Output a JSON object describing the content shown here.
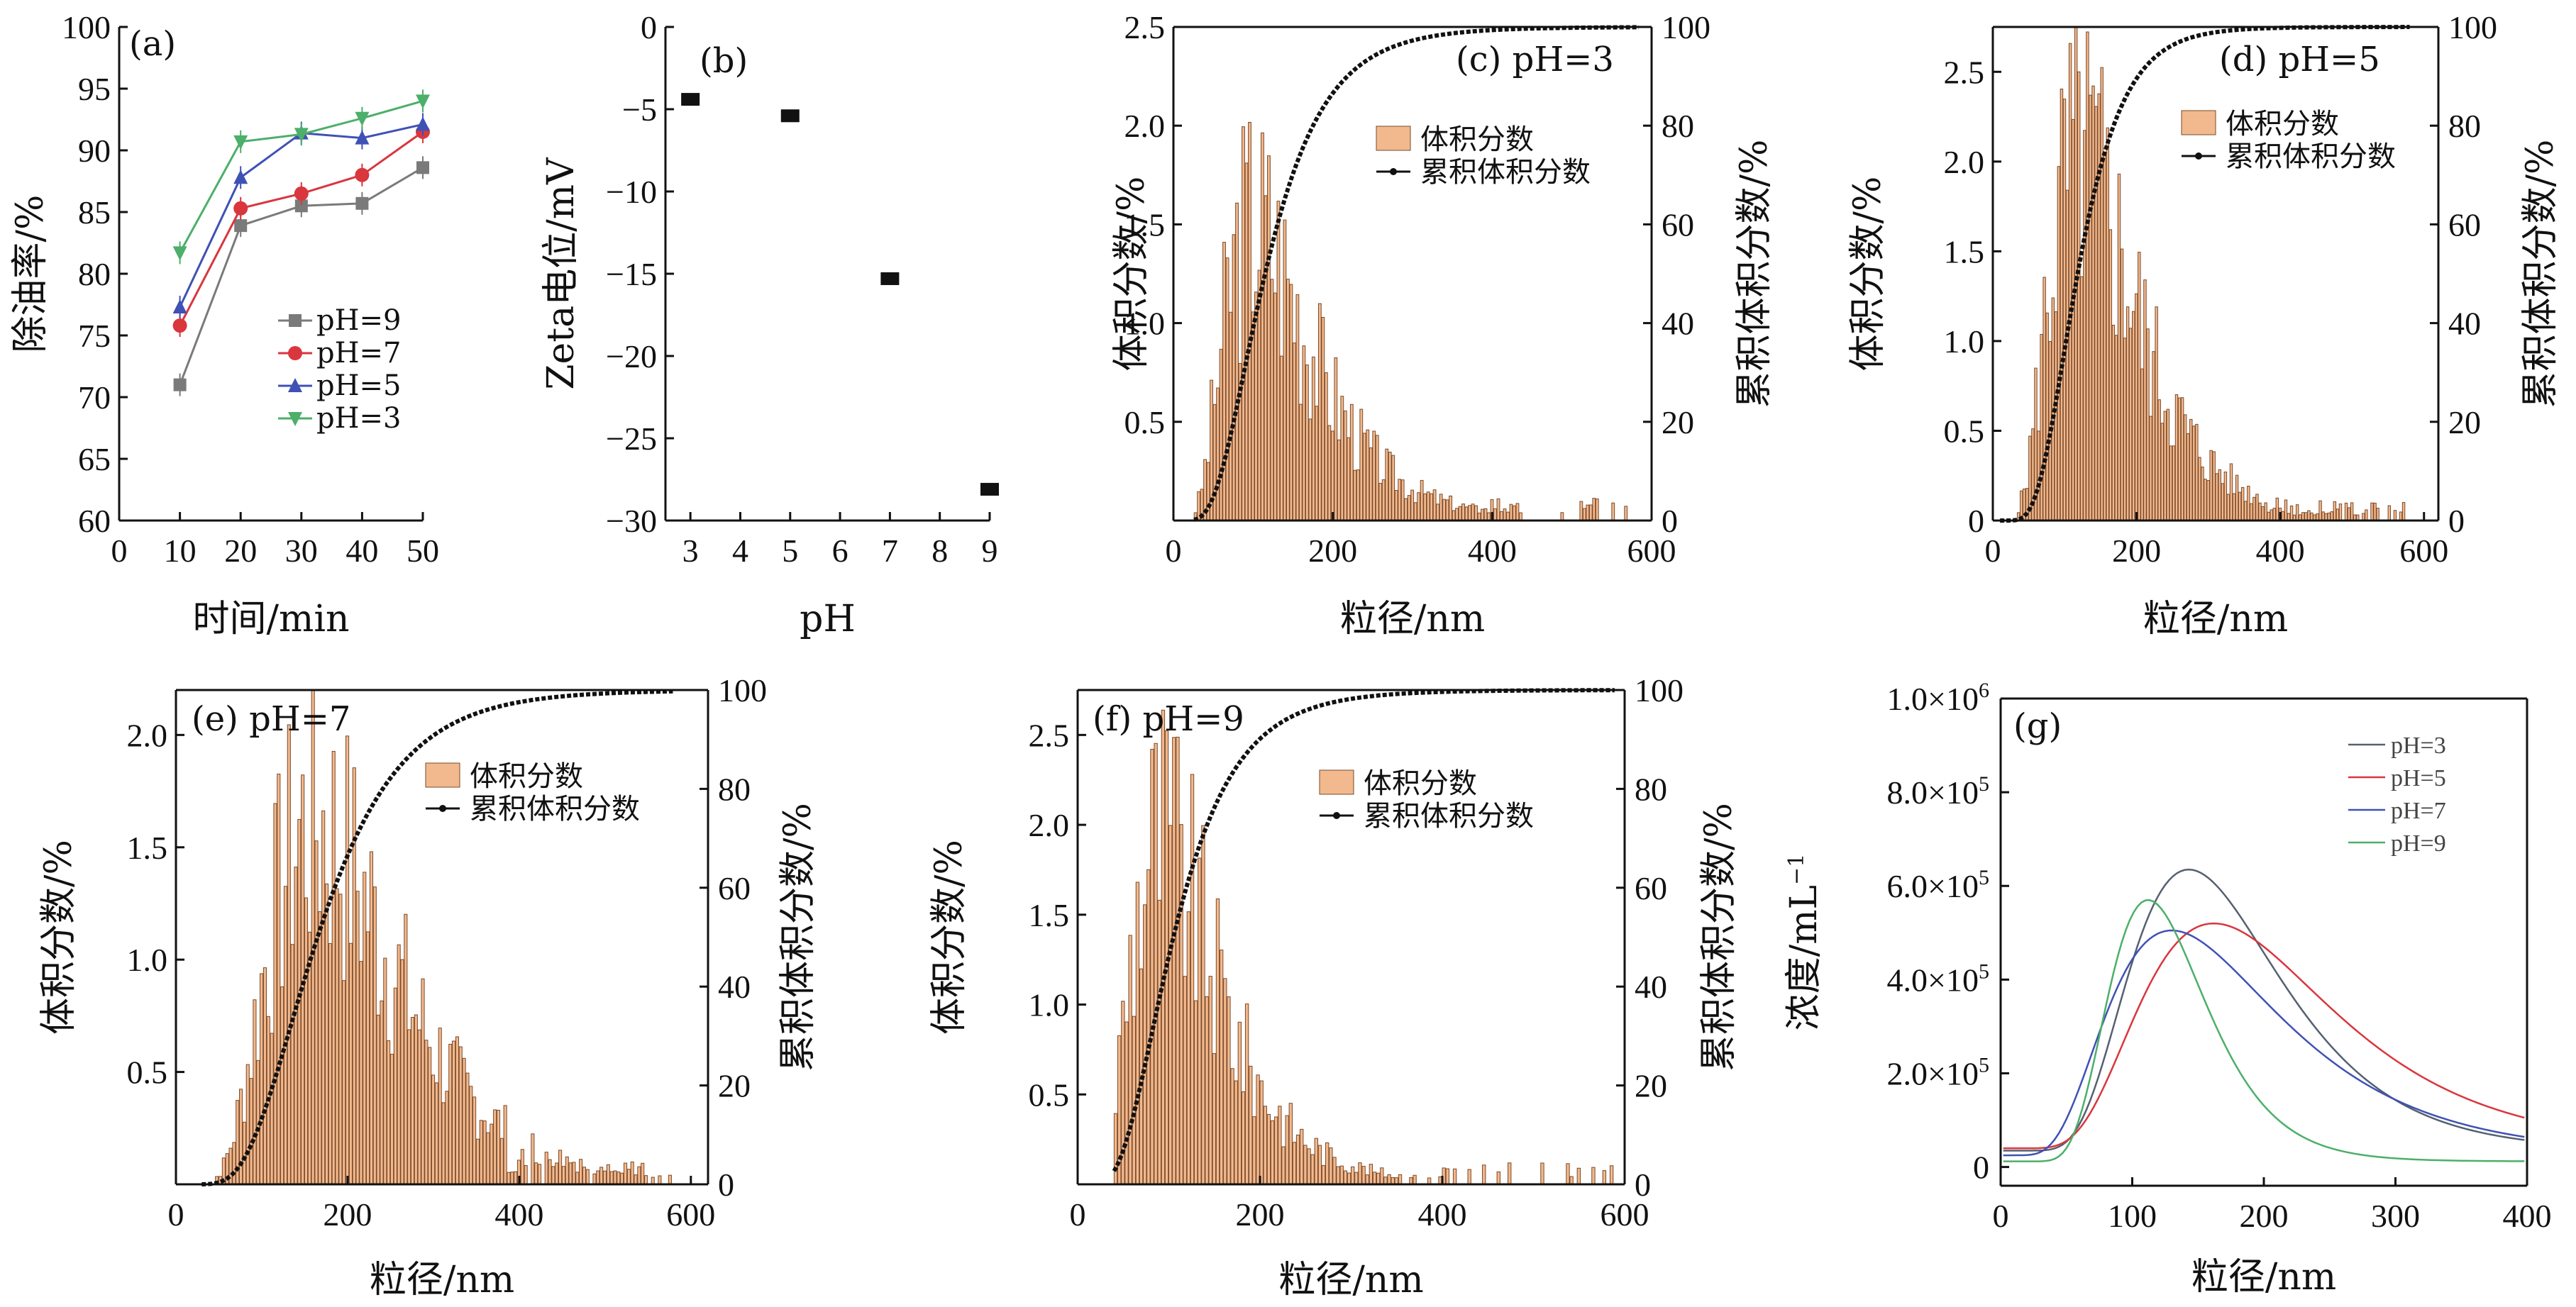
{
  "figure": {
    "colors": {
      "axis": "#111111",
      "bar_fill": "#f2b98e",
      "bar_stroke": "#7a4a2a",
      "cum": "#111111"
    }
  },
  "chart_data": [
    {
      "id": "a",
      "type": "line",
      "panel_label": "(a)",
      "xlabel": "时间/min",
      "ylabel": "除油率/%",
      "xlim": [
        0,
        50
      ],
      "ylim": [
        60,
        100
      ],
      "xticks": [
        "0",
        "10",
        "20",
        "30",
        "40",
        "50"
      ],
      "yticks": [
        "60",
        "65",
        "70",
        "75",
        "80",
        "85",
        "90",
        "95",
        "100"
      ],
      "x": [
        10,
        20,
        30,
        40,
        50
      ],
      "series": [
        {
          "name": "pH=9",
          "values": [
            71.0,
            83.9,
            85.5,
            85.7,
            88.6
          ],
          "color": "#7a7a7a",
          "marker": "square"
        },
        {
          "name": "pH=7",
          "values": [
            75.8,
            85.3,
            86.5,
            88.0,
            91.5
          ],
          "color": "#d9363e",
          "marker": "circle"
        },
        {
          "name": "pH=5",
          "values": [
            77.3,
            87.8,
            91.4,
            91.0,
            92.1
          ],
          "color": "#3f51b5",
          "marker": "triangle-up"
        },
        {
          "name": "pH=3",
          "values": [
            81.7,
            90.7,
            91.3,
            92.6,
            94.0
          ],
          "color": "#4caf6a",
          "marker": "triangle-down"
        }
      ]
    },
    {
      "id": "b",
      "type": "scatter",
      "panel_label": "(b)",
      "xlabel": "pH",
      "ylabel": "Zeta电位/mV",
      "xlim": [
        2.5,
        9
      ],
      "ylim": [
        -30,
        0
      ],
      "xticks": [
        "3",
        "4",
        "5",
        "6",
        "7",
        "8",
        "9"
      ],
      "yticks": [
        "0",
        "-5",
        "-10",
        "-15",
        "-20",
        "-25",
        "-30"
      ],
      "x": [
        3,
        5,
        7,
        9
      ],
      "values": [
        -4.4,
        -5.4,
        -15.3,
        -28.1
      ]
    },
    {
      "id": "c",
      "type": "bar",
      "panel_label": "(c)  pH=3",
      "xlabel": "粒径/nm",
      "ylabel": "体积分数/%",
      "y2label": "累积体积分数/%",
      "xlim": [
        0,
        600
      ],
      "ylim": [
        0,
        2.5
      ],
      "y2lim": [
        0,
        100
      ],
      "xticks": [
        "0",
        "200",
        "400",
        "600"
      ],
      "yticks": [
        "0.5",
        "1.0",
        "1.5",
        "2.0",
        "2.5"
      ],
      "y2ticks": [
        "0",
        "20",
        "40",
        "60",
        "80",
        "100"
      ],
      "legend": [
        "体积分数",
        "累积体积分数"
      ],
      "bins": {
        "x_start": 26,
        "x_end": 584,
        "peak": 100,
        "sigma": 0.52,
        "max": 1.85,
        "seed": 3
      },
      "cumulative": {
        "median": 115,
        "sigma": 0.5
      }
    },
    {
      "id": "d",
      "type": "bar",
      "panel_label": "(d)  pH=5",
      "xlabel": "粒径/nm",
      "ylabel": "体积分数/%",
      "y2label": "累积体积分数/%",
      "xlim": [
        0,
        620
      ],
      "ylim": [
        0,
        2.75
      ],
      "y2lim": [
        0,
        100
      ],
      "xticks": [
        "0",
        "200",
        "400",
        "600"
      ],
      "yticks": [
        "0",
        "0.5",
        "1.0",
        "1.5",
        "2.0",
        "2.5"
      ],
      "y2ticks": [
        "0",
        "20",
        "40",
        "60",
        "80",
        "100"
      ],
      "legend": [
        "体积分数",
        "累积体积分数"
      ],
      "bins": {
        "x_start": 10,
        "x_end": 580,
        "peak": 120,
        "sigma": 0.48,
        "max": 2.45,
        "seed": 5
      },
      "cumulative": {
        "median": 118,
        "sigma": 0.42
      }
    },
    {
      "id": "e",
      "type": "bar",
      "panel_label": "(e)  pH=7",
      "xlabel": "粒径/nm",
      "ylabel": "体积分数/%",
      "y2label": "累积体积分数/%",
      "xlim": [
        0,
        620
      ],
      "ylim": [
        0,
        2.2
      ],
      "y2lim": [
        0,
        100
      ],
      "xticks": [
        "0",
        "200",
        "400",
        "600"
      ],
      "yticks": [
        "0.5",
        "1.0",
        "1.5",
        "2.0"
      ],
      "y2ticks": [
        "0",
        "20",
        "40",
        "60",
        "80",
        "100"
      ],
      "legend": [
        "体积分数",
        "累积体积分数"
      ],
      "bins": {
        "x_start": 30,
        "x_end": 580,
        "peak": 160,
        "sigma": 0.45,
        "max": 1.95,
        "seed": 7
      },
      "cumulative": {
        "median": 165,
        "sigma": 0.45
      }
    },
    {
      "id": "f",
      "type": "bar",
      "panel_label": "(f)  pH=9",
      "xlabel": "粒径/nm",
      "ylabel": "体积分数/%",
      "y2label": "累积体积分数/%",
      "xlim": [
        0,
        600
      ],
      "ylim": [
        0,
        2.75
      ],
      "y2lim": [
        0,
        100
      ],
      "xticks": [
        "0",
        "200",
        "400",
        "600"
      ],
      "yticks": [
        "0.5",
        "1.0",
        "1.5",
        "2.0",
        "2.5"
      ],
      "y2ticks": [
        "0",
        "20",
        "40",
        "60",
        "80",
        "100"
      ],
      "legend": [
        "体积分数",
        "累积体积分数"
      ],
      "bins": {
        "x_start": 40,
        "x_end": 590,
        "peak": 90,
        "sigma": 0.5,
        "max": 2.35,
        "seed": 9
      },
      "cumulative": {
        "median": 105,
        "sigma": 0.5
      }
    },
    {
      "id": "g",
      "type": "line",
      "panel_label": "(g)",
      "xlabel": "粒径/nm",
      "ylabel": "浓度/mL",
      "ylabel_sup": "−1",
      "xlim": [
        0,
        400
      ],
      "ylim": [
        -40000,
        1000000
      ],
      "xticks": [
        "0",
        "100",
        "200",
        "300",
        "400"
      ],
      "yticks": [
        {
          "v": 0,
          "label": "0",
          "sup": ""
        },
        {
          "v": 200000,
          "label": "2.0×10",
          "sup": "5"
        },
        {
          "v": 400000,
          "label": "4.0×10",
          "sup": "5"
        },
        {
          "v": 600000,
          "label": "6.0×10",
          "sup": "5"
        },
        {
          "v": 800000,
          "label": "8.0×10",
          "sup": "5"
        },
        {
          "v": 1000000,
          "label": "1.0×10",
          "sup": "6"
        }
      ],
      "series": [
        {
          "name": "pH=3",
          "color": "#556070",
          "peak_x": 143,
          "peak_y": 635000,
          "sigma": 0.4,
          "base": 35000
        },
        {
          "name": "pH=5",
          "color": "#d9363e",
          "peak_x": 162,
          "peak_y": 520000,
          "sigma": 0.45,
          "base": 40000
        },
        {
          "name": "pH=7",
          "color": "#3f51b5",
          "peak_x": 130,
          "peak_y": 505000,
          "sigma": 0.5,
          "base": 25000
        },
        {
          "name": "pH=9",
          "color": "#4caf6a",
          "peak_x": 112,
          "peak_y": 570000,
          "sigma": 0.33,
          "base": 12000
        }
      ]
    }
  ]
}
